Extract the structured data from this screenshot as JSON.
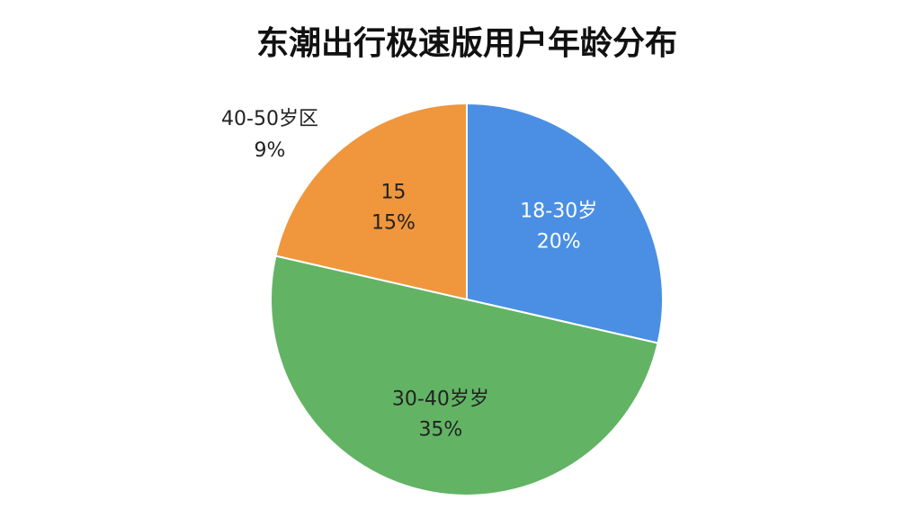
{
  "chart_data": {
    "type": "pie",
    "title": "东潮出行极速版用户年龄分布",
    "categories": [
      "18-30岁",
      "30-40岁岁",
      "15"
    ],
    "values": [
      20,
      35,
      15
    ],
    "value_labels": [
      "20%",
      "35%",
      "15%"
    ],
    "colors": [
      "#4a8fe3",
      "#62b464",
      "#f0963c"
    ],
    "annotations": [
      "40-50岁区",
      "9%"
    ]
  }
}
